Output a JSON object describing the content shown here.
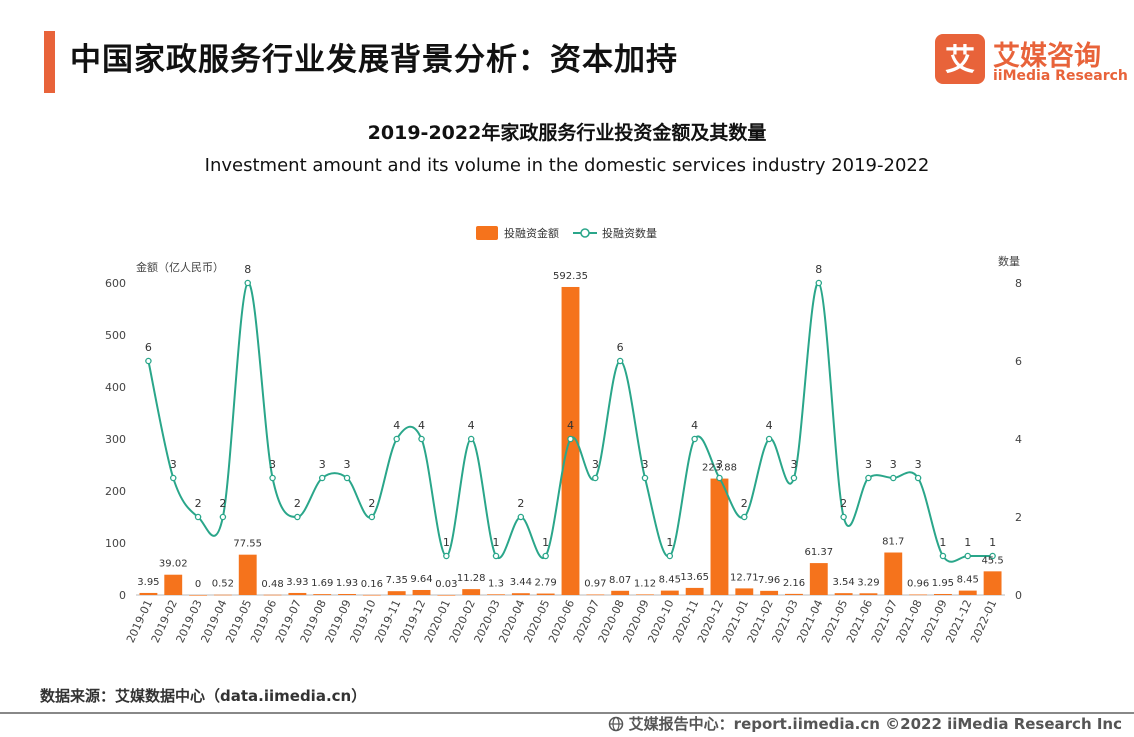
{
  "header": {
    "title": "中国家政服务行业发展背景分析：资本加持",
    "logo_cn": "艾媒咨询",
    "logo_en": "iiMedia Research",
    "logo_mark": "艾"
  },
  "source": "数据来源：艾媒数据中心（data.iimedia.cn）",
  "footer": {
    "text": "艾媒报告中心：report.iimedia.cn ©2022 iiMedia Research Inc",
    "icon": "globe-icon"
  },
  "colors": {
    "accent": "#e8633a",
    "bar": "#f5731c",
    "line": "#2aa68a"
  },
  "chart_data": {
    "type": "bar",
    "title": "2019-2022年家政服务行业投资金额及其数量",
    "subtitle": "Investment amount and its volume in the domestic services industry 2019-2022",
    "ylabel": "金额（亿人民币）",
    "y2label": "数量",
    "ylim": [
      0,
      600
    ],
    "y2lim": [
      0,
      8
    ],
    "yticks": [
      0,
      100,
      200,
      300,
      400,
      500,
      600
    ],
    "y2ticks": [
      0,
      2,
      4,
      6,
      8
    ],
    "legend_position": "top-center",
    "categories": [
      "2019-01",
      "2019-02",
      "2019-03",
      "2019-04",
      "2019-05",
      "2019-06",
      "2019-07",
      "2019-08",
      "2019-09",
      "2019-10",
      "2019-11",
      "2019-12",
      "2020-01",
      "2020-02",
      "2020-03",
      "2020-04",
      "2020-05",
      "2020-06",
      "2020-07",
      "2020-08",
      "2020-09",
      "2020-10",
      "2020-11",
      "2020-12",
      "2021-01",
      "2021-02",
      "2021-03",
      "2021-04",
      "2021-05",
      "2021-06",
      "2021-07",
      "2021-08",
      "2021-09",
      "2021-12",
      "2022-01"
    ],
    "series": [
      {
        "name": "投融资金额",
        "type": "bar",
        "axis": "left",
        "values": [
          3.95,
          39.02,
          0,
          0.52,
          77.55,
          0.48,
          3.93,
          1.69,
          1.93,
          0.16,
          7.35,
          9.64,
          0.03,
          11.28,
          1.3,
          3.44,
          2.79,
          592.35,
          0.97,
          8.07,
          1.12,
          8.45,
          13.65,
          223.88,
          12.71,
          7.96,
          2.16,
          61.37,
          3.54,
          3.29,
          81.7,
          0.96,
          1.95,
          8.45,
          45.5
        ]
      },
      {
        "name": "投融资数量",
        "type": "line",
        "axis": "right",
        "values": [
          6,
          3,
          2,
          2,
          8,
          3,
          2,
          3,
          3,
          2,
          4,
          4,
          1,
          4,
          1,
          2,
          1,
          4,
          3,
          6,
          3,
          1,
          4,
          3,
          2,
          4,
          3,
          8,
          2,
          3,
          3,
          3,
          1,
          1,
          1
        ]
      }
    ]
  }
}
